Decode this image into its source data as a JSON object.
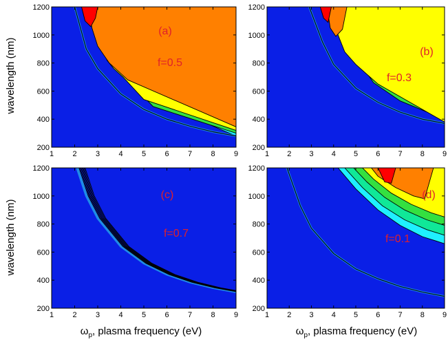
{
  "figure": {
    "ylabel": "wavelength (nm)",
    "xlabel_symbol": "ω",
    "xlabel_sub": "p",
    "xlabel_rest": ", plasma frequency (eV)"
  },
  "colors": {
    "background_blue": "#0a1fe6",
    "light_blue": "#1f8ae8",
    "cyan": "#1ff0ff",
    "green_cyan": "#10e898",
    "green": "#34e040",
    "yellow": "#ffff00",
    "orange": "#ff8000",
    "red": "#ff0000",
    "label_red": "#e0202a"
  },
  "chart_data": [
    {
      "type": "heatmap",
      "panel": "a",
      "label": "(a)",
      "annotation": "f=0.5",
      "xlim": [
        1,
        9
      ],
      "ylim": [
        200,
        1200
      ],
      "xticks": [
        1,
        2,
        3,
        4,
        5,
        6,
        7,
        8,
        9
      ],
      "yticks": [
        200,
        400,
        600,
        800,
        1000,
        1200
      ],
      "contour_bands": [
        {
          "color": "#1f8ae8",
          "points": [
            [
              7.5,
              1200
            ],
            [
              7.3,
              1000
            ],
            [
              7.6,
              800
            ],
            [
              8.0,
              600
            ],
            [
              8.6,
              450
            ],
            [
              9.0,
              410
            ]
          ]
        },
        {
          "color": "#1ff0ff",
          "points": [
            [
              4.6,
              1200
            ],
            [
              4.7,
              1000
            ],
            [
              5.0,
              800
            ],
            [
              5.6,
              600
            ],
            [
              6.6,
              450
            ],
            [
              9.0,
              280
            ]
          ]
        },
        {
          "color": "#34e040",
          "points": [
            [
              3.3,
              1200
            ],
            [
              3.5,
              1000
            ],
            [
              3.9,
              800
            ],
            [
              4.6,
              630
            ],
            [
              5.4,
              490
            ],
            [
              9.0,
              300
            ]
          ]
        },
        {
          "color": "#ffff00",
          "points": [
            [
              2.9,
              1200
            ],
            [
              3.1,
              1000
            ],
            [
              3.4,
              820
            ],
            [
              3.7,
              760
            ],
            [
              4.1,
              700
            ],
            [
              5.0,
              540
            ],
            [
              9.0,
              320
            ]
          ]
        },
        {
          "color": "#ff8000",
          "points": [
            [
              2.6,
              1200
            ],
            [
              2.75,
              1050
            ],
            [
              3.0,
              920
            ],
            [
              3.5,
              800
            ],
            [
              4.3,
              680
            ],
            [
              9.0,
              345
            ]
          ]
        },
        {
          "color": "#ff0000",
          "points": [
            [
              2.3,
              1200
            ],
            [
              2.45,
              1100
            ],
            [
              2.7,
              1060
            ],
            [
              2.9,
              1120
            ],
            [
              3.0,
              1200
            ]
          ]
        }
      ],
      "boundary": [
        [
          2.0,
          1200
        ],
        [
          2.5,
          900
        ],
        [
          3.0,
          760
        ],
        [
          4.0,
          580
        ],
        [
          5.0,
          470
        ],
        [
          6.0,
          400
        ],
        [
          7.0,
          350
        ],
        [
          8.0,
          310
        ],
        [
          9.0,
          280
        ]
      ]
    },
    {
      "type": "heatmap",
      "panel": "b",
      "label": "(b)",
      "annotation": "f=0.3",
      "xlim": [
        1,
        9
      ],
      "ylim": [
        200,
        1200
      ],
      "xticks": [
        1,
        2,
        3,
        4,
        5,
        6,
        7,
        8,
        9
      ],
      "yticks": [
        200,
        400,
        600,
        800,
        1000,
        1200
      ],
      "contour_bands": [
        {
          "color": "#1ff0ff",
          "points": [
            [
              7.2,
              1200
            ],
            [
              7.3,
              1000
            ],
            [
              7.6,
              800
            ],
            [
              8.2,
              620
            ],
            [
              9.0,
              520
            ]
          ]
        },
        {
          "color": "#10e898",
          "points": [
            [
              5.2,
              1200
            ],
            [
              5.4,
              1000
            ],
            [
              5.7,
              820
            ],
            [
              6.3,
              660
            ],
            [
              7.4,
              540
            ],
            [
              9.0,
              420
            ]
          ]
        },
        {
          "color": "#34e040",
          "points": [
            [
              4.5,
              1200
            ],
            [
              4.7,
              1000
            ],
            [
              5.1,
              820
            ],
            [
              5.8,
              660
            ],
            [
              7.0,
              530
            ],
            [
              9.0,
              400
            ]
          ]
        },
        {
          "color": "#ffff00",
          "points": [
            [
              4.0,
              1200
            ],
            [
              4.2,
              1000
            ],
            [
              4.5,
              880
            ],
            [
              5.0,
              790
            ],
            [
              6.0,
              650
            ],
            [
              9.0,
              380
            ]
          ]
        },
        {
          "color": "#ff8000",
          "points": [
            [
              3.7,
              1200
            ],
            [
              3.85,
              1050
            ],
            [
              4.1,
              990
            ],
            [
              4.4,
              1040
            ],
            [
              4.6,
              1200
            ]
          ]
        },
        {
          "color": "#ff0000",
          "points": [
            [
              3.4,
              1200
            ],
            [
              3.55,
              1120
            ],
            [
              3.75,
              1090
            ],
            [
              3.9,
              1200
            ]
          ]
        }
      ],
      "boundary": [
        [
          2.9,
          1200
        ],
        [
          3.5,
          950
        ],
        [
          4.0,
          790
        ],
        [
          5.0,
          620
        ],
        [
          6.0,
          520
        ],
        [
          7.0,
          450
        ],
        [
          8.0,
          400
        ],
        [
          9.0,
          370
        ]
      ]
    },
    {
      "type": "heatmap",
      "panel": "c",
      "label": "(c)",
      "annotation": "f=0.7",
      "xlim": [
        1,
        9
      ],
      "ylim": [
        200,
        1200
      ],
      "xticks": [
        1,
        2,
        3,
        4,
        5,
        6,
        7,
        8,
        9
      ],
      "yticks": [
        200,
        400,
        600,
        800,
        1000,
        1200
      ],
      "contour_bands": [],
      "boundary": [
        [
          2.1,
          1200
        ],
        [
          2.5,
          1000
        ],
        [
          3.0,
          840
        ],
        [
          4.0,
          640
        ],
        [
          5.0,
          520
        ],
        [
          6.0,
          440
        ],
        [
          7.0,
          385
        ],
        [
          8.0,
          345
        ],
        [
          9.0,
          315
        ]
      ],
      "band_width_x": 0.35
    },
    {
      "type": "heatmap",
      "panel": "d",
      "label": "(d)",
      "annotation": "f=0.1",
      "xlim": [
        1,
        9
      ],
      "ylim": [
        200,
        1200
      ],
      "xticks": [
        1,
        2,
        3,
        4,
        5,
        6,
        7,
        8,
        9
      ],
      "yticks": [
        200,
        400,
        600,
        800,
        1000,
        1200
      ],
      "contour_bands": [
        {
          "color": "#1ff0ff",
          "points": [
            [
              4.2,
              1200
            ],
            [
              5.0,
              1050
            ],
            [
              6.0,
              900
            ],
            [
              7.0,
              790
            ],
            [
              8.0,
              710
            ],
            [
              9.0,
              660
            ]
          ]
        },
        {
          "color": "#10e898",
          "points": [
            [
              4.5,
              1200
            ],
            [
              5.3,
              1060
            ],
            [
              6.2,
              930
            ],
            [
              7.2,
              830
            ],
            [
              8.2,
              760
            ],
            [
              9.0,
              720
            ]
          ]
        },
        {
          "color": "#34e040",
          "points": [
            [
              4.9,
              1200
            ],
            [
              5.5,
              1100
            ],
            [
              6.3,
              990
            ],
            [
              7.2,
              900
            ],
            [
              8.2,
              830
            ],
            [
              9.0,
              790
            ]
          ]
        },
        {
          "color": "#ffff00",
          "points": [
            [
              5.3,
              1200
            ],
            [
              5.8,
              1120
            ],
            [
              6.6,
              1020
            ],
            [
              7.5,
              940
            ],
            [
              8.4,
              880
            ],
            [
              9.0,
              850
            ]
          ]
        },
        {
          "color": "#ff8000",
          "points": [
            [
              5.7,
              1200
            ],
            [
              6.0,
              1140
            ],
            [
              6.8,
              1060
            ],
            [
              7.6,
              1000
            ],
            [
              8.1,
              980
            ],
            [
              8.5,
              1200
            ]
          ]
        },
        {
          "color": "#ff0000",
          "points": [
            [
              6.0,
              1200
            ],
            [
              6.3,
              1100
            ],
            [
              6.6,
              1090
            ],
            [
              6.8,
              1200
            ]
          ]
        }
      ],
      "boundary": [
        [
          1.9,
          1200
        ],
        [
          2.5,
          930
        ],
        [
          3.0,
          770
        ],
        [
          4.0,
          590
        ],
        [
          5.0,
          480
        ],
        [
          6.0,
          410
        ],
        [
          7.0,
          355
        ],
        [
          8.0,
          315
        ],
        [
          9.0,
          285
        ]
      ]
    }
  ]
}
